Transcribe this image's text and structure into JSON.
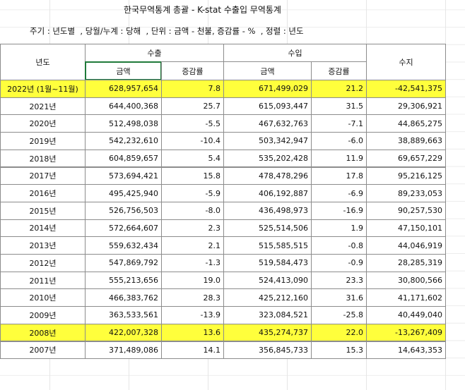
{
  "header": {
    "title": "한국무역통계 총괄 - K-stat 수출입 무역통계",
    "conditions": "주기 : 년도별  , 당월/누계 : 당해  , 단위 : 금액 - 천불, 증감률 - %  , 정렬 : 년도"
  },
  "table": {
    "columns": {
      "year": "년도",
      "export": "수출",
      "import": "수입",
      "balance": "수지",
      "sub": [
        "금액",
        "증감률",
        "금액",
        "증감률"
      ]
    },
    "rows": [
      [
        "2022년 (1월~11월)",
        "628,957,654",
        "7.8",
        "671,499,029",
        "21.2",
        "-42,541,375"
      ],
      [
        "2021년",
        "644,400,368",
        "25.7",
        "615,093,447",
        "31.5",
        "29,306,921"
      ],
      [
        "2020년",
        "512,498,038",
        "-5.5",
        "467,632,763",
        "-7.1",
        "44,865,275"
      ],
      [
        "2019년",
        "542,232,610",
        "-10.4",
        "503,342,947",
        "-6.0",
        "38,889,663"
      ],
      [
        "2018년",
        "604,859,657",
        "5.4",
        "535,202,428",
        "11.9",
        "69,657,229"
      ],
      [
        "2017년",
        "573,694,421",
        "15.8",
        "478,478,296",
        "17.8",
        "95,216,125"
      ],
      [
        "2016년",
        "495,425,940",
        "-5.9",
        "406,192,887",
        "-6.9",
        "89,233,053"
      ],
      [
        "2015년",
        "526,756,503",
        "-8.0",
        "436,498,973",
        "-16.9",
        "90,257,530"
      ],
      [
        "2014년",
        "572,664,607",
        "2.3",
        "525,514,506",
        "1.9",
        "47,150,101"
      ],
      [
        "2013년",
        "559,632,434",
        "2.1",
        "515,585,515",
        "-0.8",
        "44,046,919"
      ],
      [
        "2012년",
        "547,869,792",
        "-1.3",
        "519,584,473",
        "-0.9",
        "28,285,319"
      ],
      [
        "2011년",
        "555,213,656",
        "19.0",
        "524,413,090",
        "23.3",
        "30,800,566"
      ],
      [
        "2010년",
        "466,383,762",
        "28.3",
        "425,212,160",
        "31.6",
        "41,171,602"
      ],
      [
        "2009년",
        "363,533,561",
        "-13.9",
        "323,084,521",
        "-25.8",
        "40,449,040"
      ],
      [
        "2008년",
        "422,007,328",
        "13.6",
        "435,274,737",
        "22.0",
        "-13,267,409"
      ],
      [
        "2007년",
        "371,489,086",
        "14.1",
        "356,845,733",
        "15.3",
        "14,643,353"
      ]
    ]
  }
}
